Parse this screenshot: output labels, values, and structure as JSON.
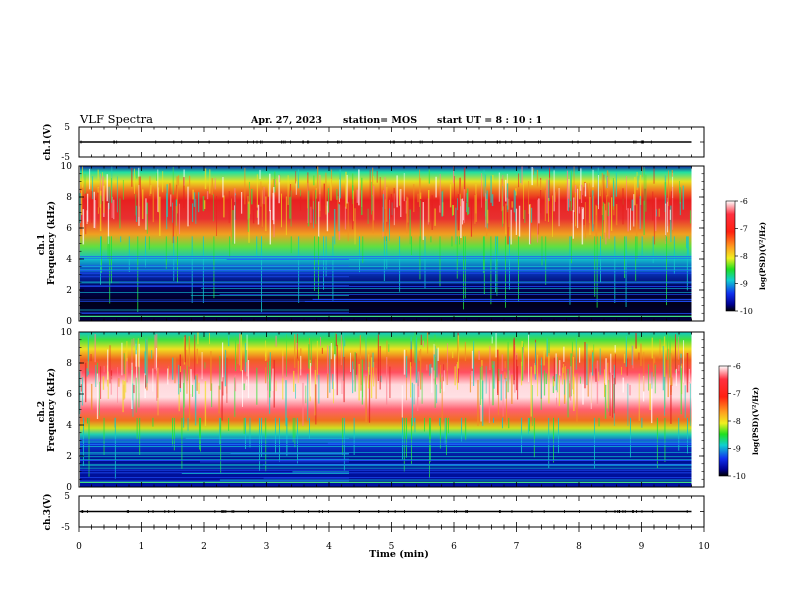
{
  "header": {
    "title": "VLF Spectra",
    "date": "Apr. 27, 2023",
    "station": "station= MOS",
    "start": "start  UT =  8 : 10 : 1"
  },
  "colors": {
    "spectrogram_scale": [
      "#ffffff",
      "#e8101a",
      "#f09018",
      "#f0f020",
      "#20e020",
      "#08c8d0",
      "#1030e0",
      "#000070",
      "#000000"
    ],
    "waveform_line": "#000000"
  },
  "chart_data": [
    {
      "id": "ch1_waveform",
      "type": "line",
      "ylabel": "ch.1(V)",
      "ylim": [
        -5,
        5
      ],
      "yticks": [
        "5",
        "-5"
      ],
      "x": [
        0,
        10
      ],
      "series": [
        {
          "values": [
            0,
            0
          ]
        }
      ],
      "grid": false
    },
    {
      "id": "ch1_spectrogram",
      "type": "heatmap",
      "ylabel": "ch.1 Frequency (kHz)",
      "ylim": [
        0,
        10
      ],
      "yticks": [
        "0",
        "2",
        "4",
        "6",
        "8",
        "10"
      ],
      "xlim": [
        0,
        10
      ],
      "band_lower_khz": 5.2,
      "band_upper_khz": 10,
      "colorbar": {
        "label": "log(PSD)(V²/Hz)",
        "ticks": [
          "-6",
          "-7",
          "-8",
          "-9",
          "-10"
        ],
        "range": [
          -10,
          -6
        ]
      }
    },
    {
      "id": "ch2_spectrogram",
      "type": "heatmap",
      "ylabel": "ch.2 Frequency (kHz)",
      "ylim": [
        0,
        10
      ],
      "yticks": [
        "0",
        "2",
        "4",
        "6",
        "8",
        "10"
      ],
      "xlim": [
        0,
        10
      ],
      "band_lower_khz": 4.2,
      "band_upper_khz": 10,
      "colorbar": {
        "label": "log(PSD)(V²/Hz)",
        "ticks": [
          "-6",
          "-7",
          "-8",
          "-9",
          "-10"
        ],
        "range": [
          -10,
          -6
        ]
      }
    },
    {
      "id": "ch3_waveform",
      "type": "line",
      "ylabel": "ch.3(V)",
      "ylim": [
        -5,
        5
      ],
      "yticks": [
        "5",
        "-5"
      ],
      "x": [
        0,
        10
      ],
      "series": [
        {
          "values": [
            0,
            0
          ]
        }
      ],
      "grid": false
    }
  ],
  "xaxis": {
    "label": "Time  (min)",
    "range": [
      0,
      10
    ],
    "data_end": 9.8,
    "ticks": [
      "0",
      "1",
      "2",
      "3",
      "4",
      "5",
      "6",
      "7",
      "8",
      "9",
      "10"
    ]
  }
}
